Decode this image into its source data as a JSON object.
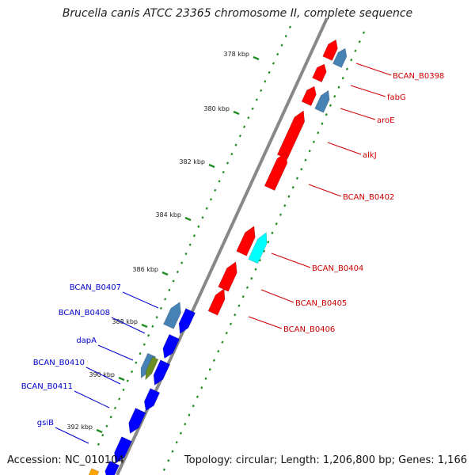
{
  "title": "Brucella canis ATCC 23365 chromosome II, complete sequence",
  "accession_label": "Accession: NC_010104",
  "summary_label": "Topology: circular; Length: 1,206,800 bp; Genes: 1,166",
  "scale_ticks": [
    "378 kbp",
    "380 kbp",
    "382 kbp",
    "384 kbp",
    "386 kbp",
    "388 kbp",
    "390 kbp",
    "392 kbp"
  ],
  "colors": {
    "forward_gene": "#ff0000",
    "reverse_gene": "#0000ff",
    "steelblue_gene": "#4682b4",
    "cyan_gene": "#00ffff",
    "olive_gene": "#6b8e23",
    "orange_gene": "#ffa500",
    "backbone": "#888888",
    "tick": "#228b22",
    "forward_label": "#cc0000",
    "reverse_label": "#0000cc"
  },
  "forward_labels": [
    "BCAN_B0398",
    "fabG",
    "aroE",
    "alkJ",
    "BCAN_B0402",
    "BCAN_B0404",
    "BCAN_B0405",
    "BCAN_B0406"
  ],
  "reverse_labels": [
    "BCAN_B0407",
    "BCAN_B0408",
    "dapA",
    "BCAN_B0410",
    "BCAN_B0411",
    "gsiB"
  ]
}
